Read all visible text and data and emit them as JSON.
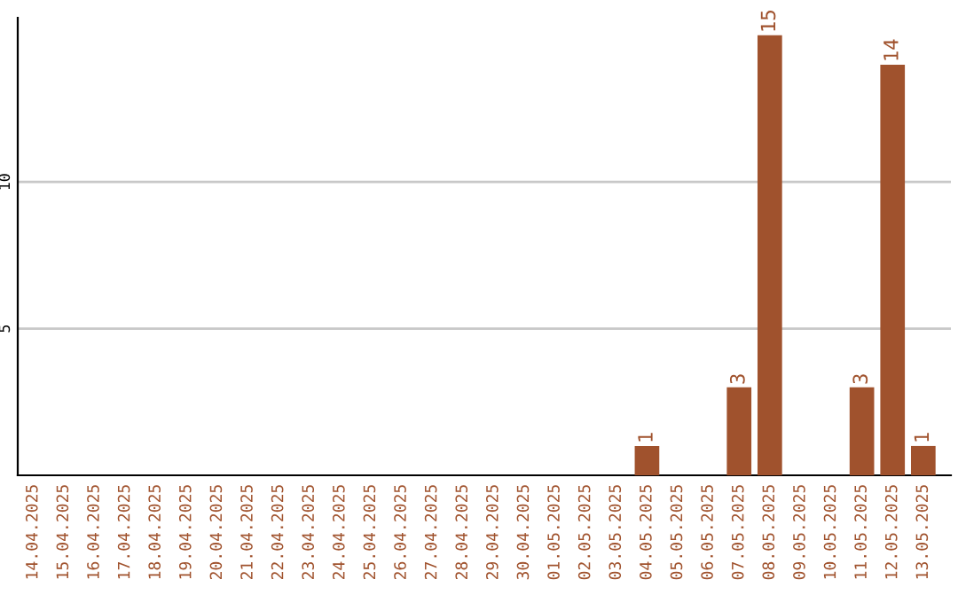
{
  "chart_data": {
    "type": "bar",
    "categories": [
      "14.04.2025",
      "15.04.2025",
      "16.04.2025",
      "17.04.2025",
      "18.04.2025",
      "19.04.2025",
      "20.04.2025",
      "21.04.2025",
      "22.04.2025",
      "23.04.2025",
      "24.04.2025",
      "25.04.2025",
      "26.04.2025",
      "27.04.2025",
      "28.04.2025",
      "29.04.2025",
      "30.04.2025",
      "01.05.2025",
      "02.05.2025",
      "03.05.2025",
      "04.05.2025",
      "05.05.2025",
      "06.05.2025",
      "07.05.2025",
      "08.05.2025",
      "09.05.2025",
      "10.05.2025",
      "11.05.2025",
      "12.05.2025",
      "13.05.2025"
    ],
    "values": [
      0,
      0,
      0,
      0,
      0,
      0,
      0,
      0,
      0,
      0,
      0,
      0,
      0,
      0,
      0,
      0,
      0,
      0,
      0,
      0,
      1,
      0,
      0,
      3,
      15,
      0,
      0,
      3,
      14,
      1
    ],
    "value_labels": [
      null,
      null,
      null,
      null,
      null,
      null,
      null,
      null,
      null,
      null,
      null,
      null,
      null,
      null,
      null,
      null,
      null,
      null,
      null,
      null,
      "1",
      null,
      null,
      "3",
      "15",
      null,
      null,
      "3",
      "14",
      "1"
    ],
    "color": "#a0522d",
    "ylim": [
      0,
      15.6
    ],
    "yticks": [
      5,
      10
    ],
    "grid": "y"
  }
}
